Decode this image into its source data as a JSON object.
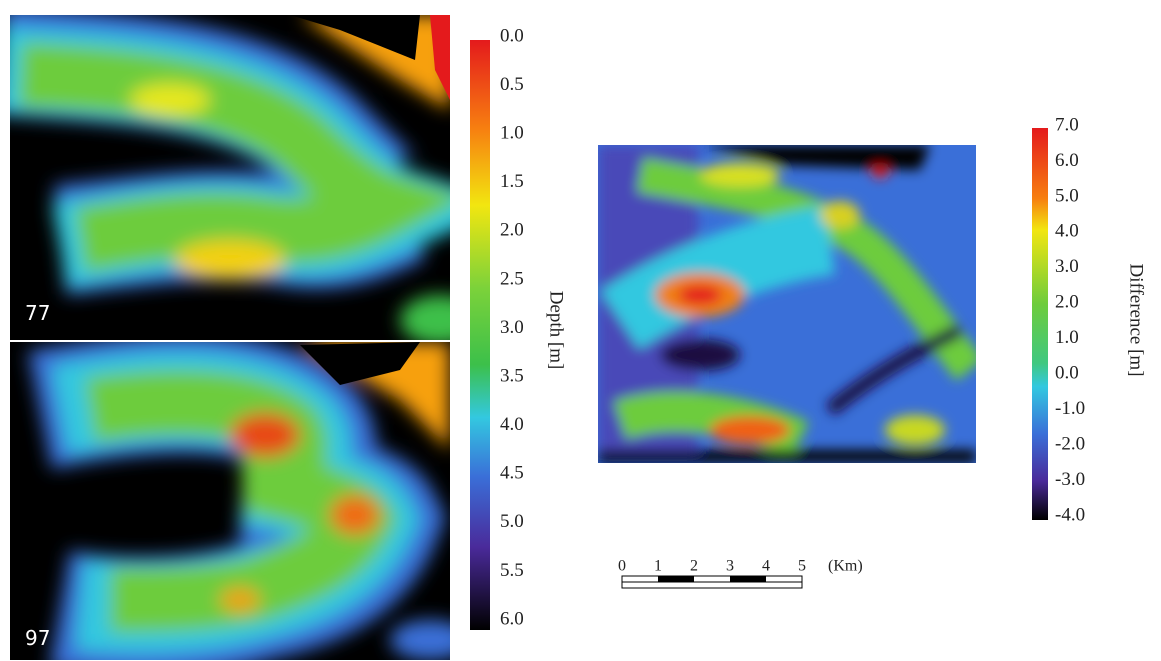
{
  "panels": [
    {
      "label": "77"
    },
    {
      "label": "97"
    }
  ],
  "depth_colorbar": {
    "title": "Depth [m]",
    "ticks": [
      "0.0",
      "0.5",
      "1.0",
      "1.5",
      "2.0",
      "2.5",
      "3.0",
      "3.5",
      "4.0",
      "4.5",
      "5.0",
      "5.5",
      "6.0"
    ]
  },
  "difference_colorbar": {
    "title": "Difference [m]",
    "ticks": [
      "7.0",
      "6.0",
      "5.0",
      "4.0",
      "3.0",
      "2.0",
      "1.0",
      "0.0",
      "-1.0",
      "-2.0",
      "-3.0",
      "-4.0"
    ]
  },
  "scale_bar": {
    "ticks": [
      "0",
      "1",
      "2",
      "3",
      "4",
      "5"
    ],
    "unit": "(Km)"
  }
}
